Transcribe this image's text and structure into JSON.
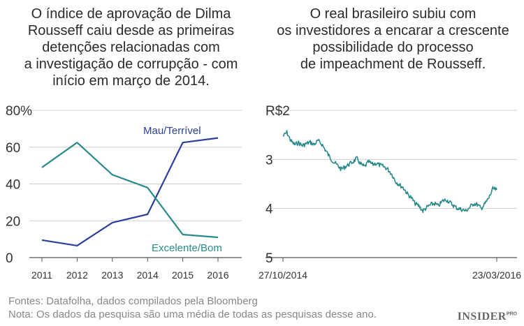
{
  "titles": {
    "left": "O índice de aprovação de Dilma\nRousseff caiu desde as primeiras\ndetenções relacionadas com\na investigação de corrupção - com\ninício em março de 2014.",
    "right": "O real brasileiro subiu com\nos investidores a encarar a crescente\npossibilidade do processo\nde impeachment de Rousseff."
  },
  "chart_data": [
    {
      "type": "line",
      "x": [
        2011,
        2012,
        2013,
        2014,
        2015,
        2016
      ],
      "ylim": [
        0,
        80
      ],
      "yticks": [
        "80%",
        "60",
        "40",
        "20",
        "0"
      ],
      "xticks": [
        "2011",
        "2012",
        "2013",
        "2014",
        "2015",
        "2016"
      ],
      "series": [
        {
          "name": "Mau/Terrível",
          "color": "#2a3f9e",
          "values": [
            9.5,
            6.5,
            19,
            23.5,
            62.5,
            65
          ]
        },
        {
          "name": "Excelente/Bom",
          "color": "#2a8a8a",
          "values": [
            49,
            62.5,
            45,
            38,
            12.5,
            11
          ]
        }
      ],
      "grid": "horizontal"
    },
    {
      "type": "line",
      "y_axis_inverted": true,
      "ylim": [
        2,
        5
      ],
      "yticks": [
        "R$2",
        "3",
        "4",
        "5"
      ],
      "xticks": [
        "27/10/2014",
        "23/03/2016"
      ],
      "series": [
        {
          "color": "#2a8a8a",
          "values": [
            2.53,
            2.45,
            2.62,
            2.7,
            2.66,
            2.72,
            2.68,
            2.65,
            2.7,
            2.62,
            2.69,
            2.82,
            2.95,
            3.05,
            3.12,
            3.2,
            3.15,
            3.1,
            3.05,
            2.98,
            3.1,
            3.15,
            3.05,
            3.1,
            3.08,
            3.12,
            3.15,
            3.2,
            3.3,
            3.45,
            3.52,
            3.58,
            3.7,
            3.78,
            3.9,
            3.95,
            4.05,
            3.98,
            3.92,
            3.9,
            3.95,
            3.85,
            3.82,
            3.88,
            3.95,
            4.0,
            4.02,
            4.05,
            3.98,
            3.9,
            3.92,
            4.0,
            3.9,
            3.78,
            3.6,
            3.62
          ]
        }
      ],
      "grid": "horizontal"
    }
  ],
  "footer": {
    "sources": "Fontes: Datafolha, dados compilados pela Bloomberg",
    "note": "Nota: Os dados da pesquisa são uma média de todas as pesquisas desse ano."
  },
  "brand": {
    "name": "INSIDER",
    "suffix": "PRO"
  }
}
